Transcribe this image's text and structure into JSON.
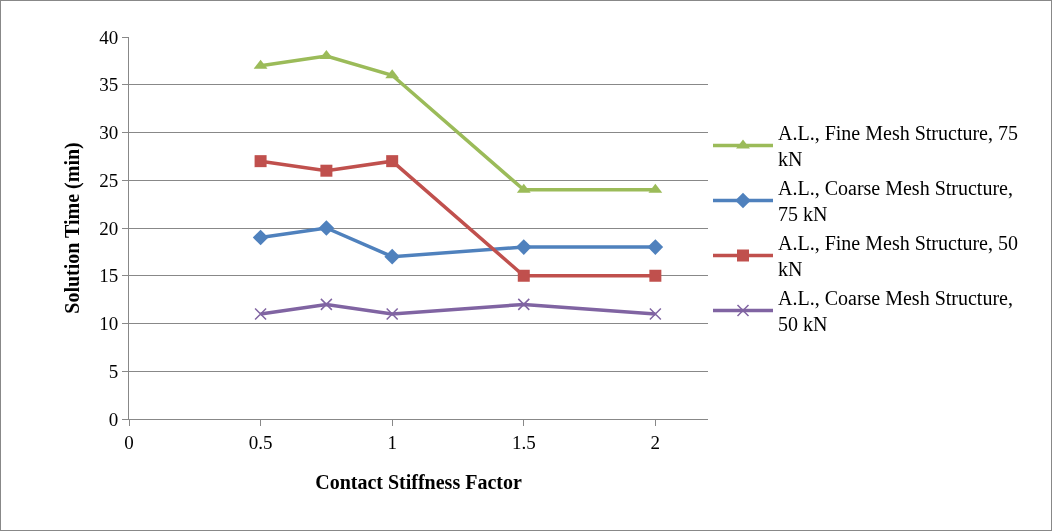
{
  "chart_data": {
    "type": "line",
    "xlabel": "Contact Stiffness Factor",
    "ylabel": "Solution Time (min)",
    "x": [
      0.5,
      0.75,
      1,
      1.5,
      2
    ],
    "xlim": [
      0,
      2.2
    ],
    "xticks": [
      0,
      0.5,
      1,
      1.5,
      2
    ],
    "ylim": [
      0,
      40
    ],
    "yticks": [
      0,
      5,
      10,
      15,
      20,
      25,
      30,
      35,
      40
    ],
    "grid": "y",
    "legend": "right",
    "line_style": "solid",
    "series": [
      {
        "name": "A.L., Fine Mesh Structure, 75 kN",
        "color": "#9bbb59",
        "marker": "triangle",
        "values": [
          37,
          38,
          36,
          24,
          24
        ]
      },
      {
        "name": "A.L., Coarse Mesh Structure, 75 kN",
        "color": "#4f81bd",
        "marker": "diamond",
        "values": [
          19,
          20,
          17,
          18,
          18
        ]
      },
      {
        "name": "A.L., Fine Mesh Structure, 50 kN",
        "color": "#c0504d",
        "marker": "square",
        "values": [
          27,
          26,
          27,
          15,
          15
        ]
      },
      {
        "name": "A.L., Coarse Mesh Structure, 50 kN",
        "color": "#8064a2",
        "marker": "cross",
        "values": [
          11,
          12,
          11,
          12,
          11
        ]
      }
    ]
  }
}
